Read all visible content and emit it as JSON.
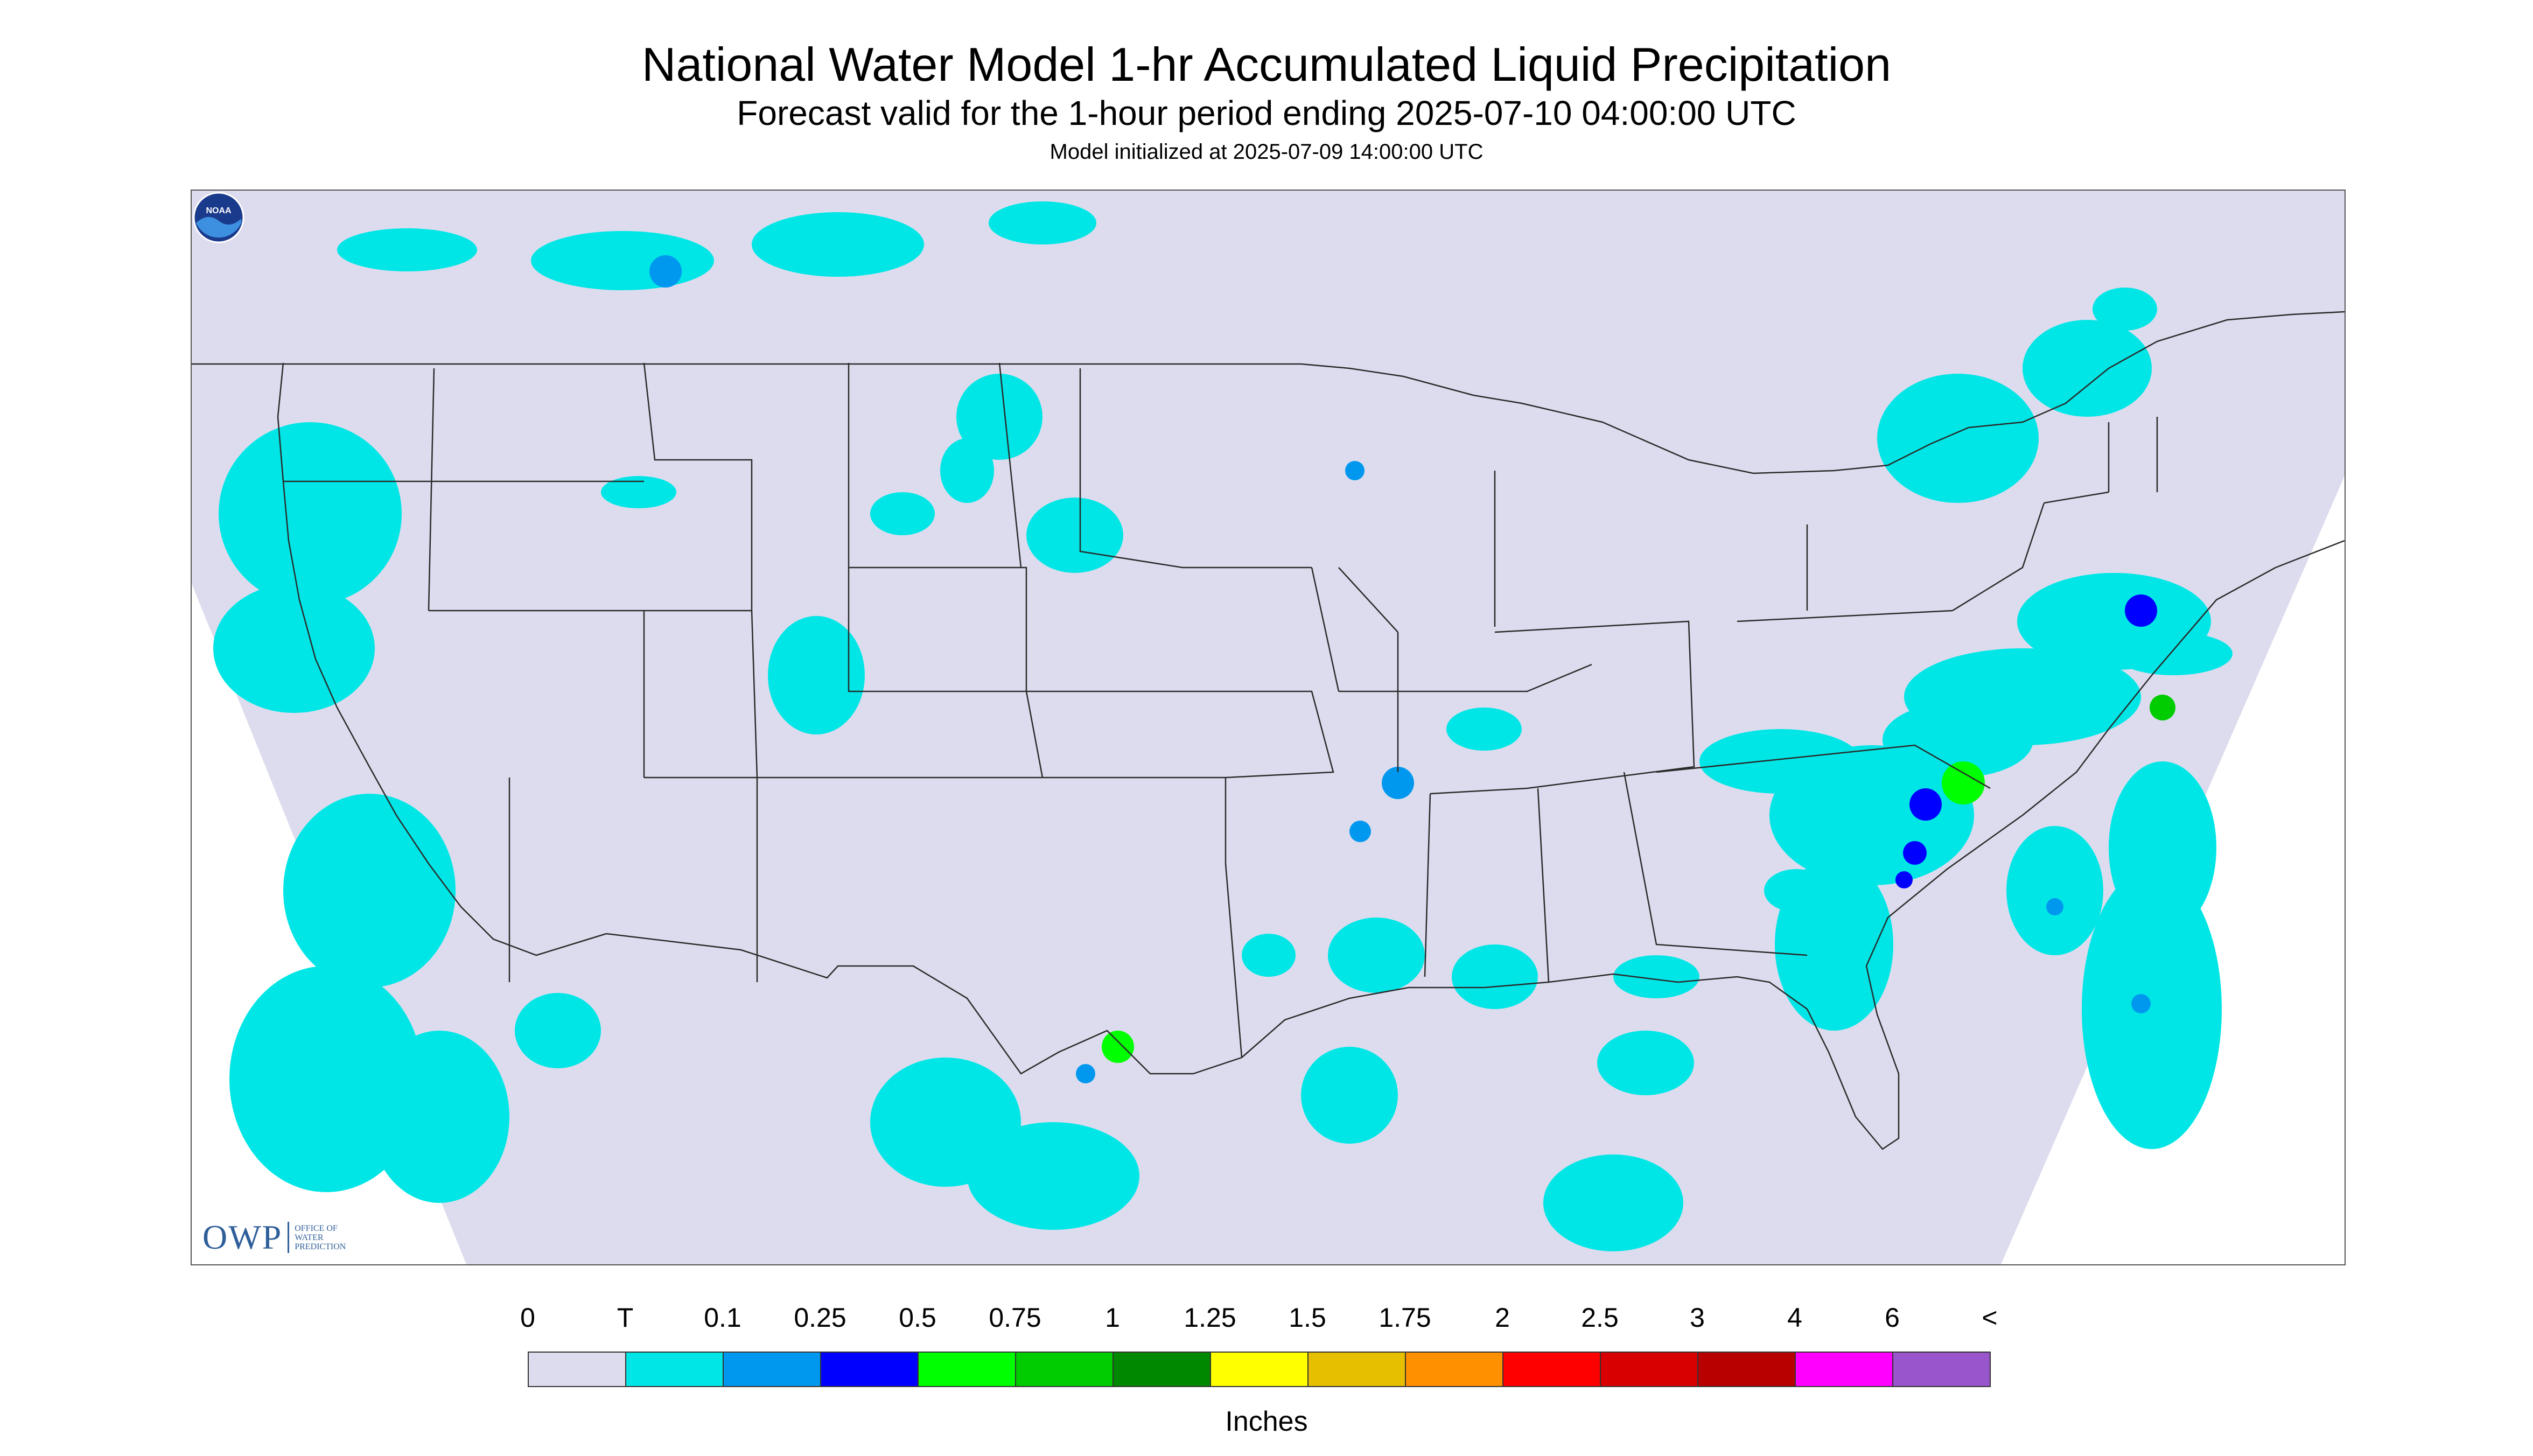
{
  "header": {
    "title": "National Water Model 1-hr Accumulated Liquid Precipitation",
    "subtitle": "Forecast valid for the 1-hour period ending 2025-07-10 04:00:00 UTC",
    "init_line": "Model initialized at 2025-07-09 14:00:00 UTC"
  },
  "map": {
    "background_color": "#dcdcee",
    "outside_color": "#ffffff",
    "boundary_color": "#2a2a2a",
    "precip_levels": [
      "#00e6e6",
      "#0098ee",
      "#0000ff",
      "#00ff00",
      "#00cc00",
      "#008800",
      "#ffff00",
      "#e6c000",
      "#ff9000",
      "#ff0000",
      "#d80000",
      "#b80000",
      "#ff00ff",
      "#9955cc"
    ]
  },
  "logos": {
    "owp_mark": "OWP",
    "owp_text": [
      "OFFICE OF",
      "WATER",
      "PREDICTION"
    ],
    "noaa_text": "NOAA"
  },
  "legend": {
    "tick_labels": [
      "0",
      "T",
      "0.1",
      "0.25",
      "0.5",
      "0.75",
      "1",
      "1.25",
      "1.5",
      "1.75",
      "2",
      "2.5",
      "3",
      "4",
      "6",
      "<"
    ],
    "colors": [
      "#dcdcee",
      "#00e6e6",
      "#0098ee",
      "#0000ff",
      "#00ff00",
      "#00cc00",
      "#008800",
      "#ffff00",
      "#e6c000",
      "#ff9000",
      "#ff0000",
      "#d80000",
      "#b80000",
      "#ff00ff",
      "#9955cc"
    ],
    "units": "Inches"
  }
}
